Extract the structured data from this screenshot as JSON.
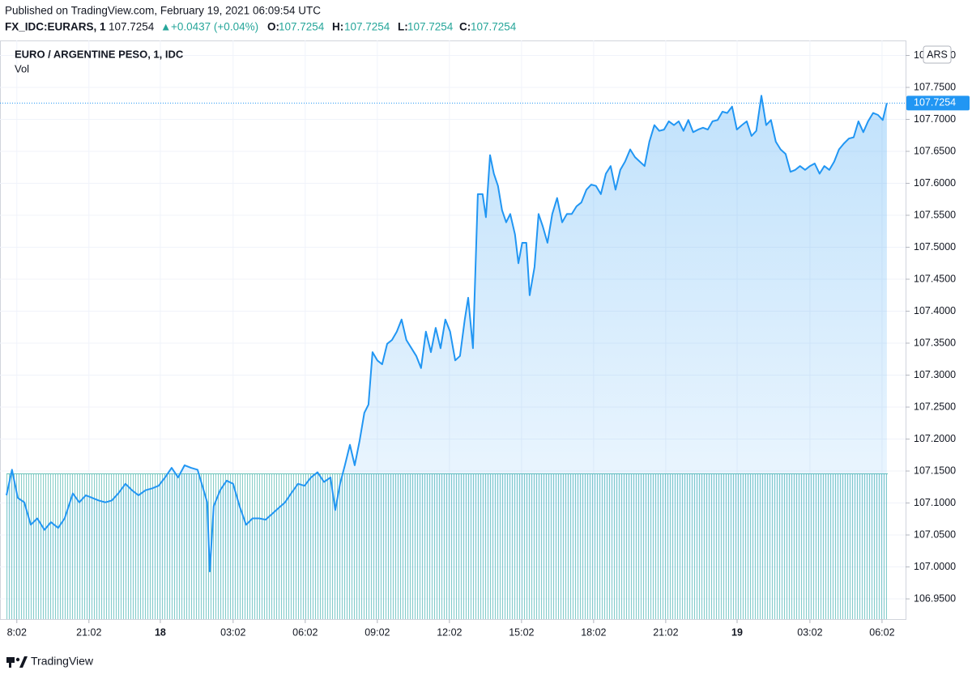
{
  "header": {
    "published": "Published on TradingView.com, February 19, 2021 06:09:54 UTC",
    "symbol": "FX_IDC:EURARS, 1",
    "last": "107.7254",
    "arrow": "▲",
    "change": "+0.0437 (+0.04%)",
    "o_label": "O:",
    "o": "107.7254",
    "h_label": "H:",
    "h": "107.7254",
    "l_label": "L:",
    "l": "107.7254",
    "c_label": "C:",
    "c": "107.7254"
  },
  "footer": {
    "brand": "TradingView"
  },
  "chart_data": {
    "type": "line",
    "volume_label": "Vol",
    "currency_button": "ARS",
    "price_label": "107.7254",
    "xlim": [
      -6.67,
      31.01
    ],
    "ylim": [
      106.9184,
      107.8234
    ],
    "grid": true,
    "xticks": [
      {
        "value": -5.97,
        "label": "8:02"
      },
      {
        "value": -2.97,
        "label": "21:02"
      },
      {
        "value": 0,
        "label": "18"
      },
      {
        "value": 3.03,
        "label": "03:02"
      },
      {
        "value": 6.03,
        "label": "06:02"
      },
      {
        "value": 9.03,
        "label": "09:02"
      },
      {
        "value": 12.03,
        "label": "12:02"
      },
      {
        "value": 15.03,
        "label": "15:02"
      },
      {
        "value": 18.03,
        "label": "18:02"
      },
      {
        "value": 21.03,
        "label": "21:02"
      },
      {
        "value": 24,
        "label": "19"
      },
      {
        "value": 27.03,
        "label": "03:02"
      },
      {
        "value": 30.03,
        "label": "06:02"
      }
    ],
    "yticks": [
      {
        "value": 106.95,
        "label": "106.9500"
      },
      {
        "value": 107,
        "label": "107.0000"
      },
      {
        "value": 107.05,
        "label": "107.0500"
      },
      {
        "value": 107.1,
        "label": "107.1000"
      },
      {
        "value": 107.15,
        "label": "107.1500"
      },
      {
        "value": 107.2,
        "label": "107.2000"
      },
      {
        "value": 107.25,
        "label": "107.2500"
      },
      {
        "value": 107.3,
        "label": "107.3000"
      },
      {
        "value": 107.35,
        "label": "107.3500"
      },
      {
        "value": 107.4,
        "label": "107.4000"
      },
      {
        "value": 107.45,
        "label": "107.4500"
      },
      {
        "value": 107.5,
        "label": "107.5000"
      },
      {
        "value": 107.55,
        "label": "107.5500"
      },
      {
        "value": 107.6,
        "label": "107.6000"
      },
      {
        "value": 107.65,
        "label": "107.6500"
      },
      {
        "value": 107.7,
        "label": "107.7000"
      },
      {
        "value": 107.75,
        "label": "107.7500"
      },
      {
        "value": 107.8,
        "label": "107.8000"
      }
    ],
    "x": [
      -6.4,
      -6.17,
      -5.93,
      -5.66,
      -5.39,
      -5.12,
      -4.82,
      -4.55,
      -4.25,
      -3.98,
      -3.64,
      -3.37,
      -3.1,
      -2.83,
      -2.56,
      -2.29,
      -2.02,
      -1.75,
      -1.45,
      -1.18,
      -0.91,
      -0.61,
      -0.34,
      -0.07,
      0.2,
      0.47,
      0.74,
      1.01,
      1.28,
      1.55,
      1.75,
      1.95,
      2.06,
      2.22,
      2.49,
      2.76,
      3.03,
      3.3,
      3.57,
      3.84,
      4.11,
      4.38,
      4.65,
      4.92,
      5.19,
      5.46,
      5.73,
      6.0,
      6.27,
      6.54,
      6.81,
      7.08,
      7.28,
      7.48,
      7.68,
      7.89,
      8.09,
      8.29,
      8.49,
      8.66,
      8.83,
      9.03,
      9.23,
      9.44,
      9.64,
      9.84,
      10.04,
      10.24,
      10.45,
      10.65,
      10.85,
      11.05,
      11.26,
      11.46,
      11.66,
      11.86,
      12.06,
      12.27,
      12.47,
      12.67,
      12.81,
      13.01,
      13.21,
      13.41,
      13.55,
      13.72,
      13.88,
      14.05,
      14.22,
      14.39,
      14.56,
      14.76,
      14.9,
      15.06,
      15.23,
      15.37,
      15.57,
      15.74,
      15.91,
      16.11,
      16.31,
      16.51,
      16.72,
      16.92,
      17.12,
      17.32,
      17.52,
      17.73,
      17.93,
      18.13,
      18.33,
      18.54,
      18.74,
      18.94,
      19.14,
      19.34,
      19.55,
      19.75,
      19.95,
      20.15,
      20.35,
      20.56,
      20.76,
      20.96,
      21.16,
      21.37,
      21.57,
      21.77,
      21.97,
      22.17,
      22.38,
      22.58,
      22.78,
      22.98,
      23.19,
      23.39,
      23.59,
      23.79,
      23.99,
      24.2,
      24.4,
      24.6,
      24.8,
      25.01,
      25.21,
      25.41,
      25.61,
      25.81,
      26.02,
      26.22,
      26.42,
      26.62,
      26.83,
      27.03,
      27.23,
      27.43,
      27.63,
      27.84,
      28.04,
      28.24,
      28.44,
      28.65,
      28.85,
      29.05,
      29.25,
      29.45,
      29.66,
      29.86,
      30.06,
      30.23
    ],
    "series": [
      {
        "name": "EURO / ARGENTINE PESO, 1, IDC",
        "color": "#2196f3",
        "values": [
          107.112,
          107.152,
          107.108,
          107.101,
          107.066,
          107.076,
          107.058,
          107.07,
          107.061,
          107.076,
          107.115,
          107.101,
          107.112,
          107.108,
          107.104,
          107.101,
          107.104,
          107.115,
          107.13,
          107.12,
          107.112,
          107.12,
          107.123,
          107.127,
          107.14,
          107.155,
          107.14,
          107.159,
          107.155,
          107.152,
          107.127,
          107.101,
          106.993,
          107.095,
          107.12,
          107.135,
          107.13,
          107.095,
          107.066,
          107.076,
          107.076,
          107.074,
          107.083,
          107.092,
          107.101,
          107.116,
          107.13,
          107.127,
          107.14,
          107.148,
          107.133,
          107.14,
          107.089,
          107.13,
          107.159,
          107.191,
          107.159,
          107.197,
          107.241,
          107.254,
          107.336,
          107.323,
          107.317,
          107.349,
          107.355,
          107.368,
          107.387,
          107.355,
          107.342,
          107.33,
          107.311,
          107.368,
          107.336,
          107.374,
          107.342,
          107.387,
          107.368,
          107.323,
          107.33,
          107.387,
          107.421,
          107.342,
          107.583,
          107.583,
          107.547,
          107.644,
          107.615,
          107.596,
          107.558,
          107.539,
          107.552,
          107.52,
          107.475,
          107.507,
          107.507,
          107.425,
          107.469,
          107.552,
          107.533,
          107.507,
          107.552,
          107.577,
          107.539,
          107.552,
          107.552,
          107.564,
          107.57,
          107.59,
          107.598,
          107.596,
          107.583,
          107.615,
          107.627,
          107.59,
          107.621,
          107.634,
          107.653,
          107.641,
          107.634,
          107.627,
          107.665,
          107.691,
          107.682,
          107.684,
          107.697,
          107.691,
          107.697,
          107.682,
          107.699,
          107.68,
          107.684,
          107.687,
          107.684,
          107.697,
          107.699,
          107.712,
          107.71,
          107.72,
          107.684,
          107.691,
          107.697,
          107.674,
          107.682,
          107.737,
          107.691,
          107.699,
          107.665,
          107.653,
          107.646,
          107.618,
          107.621,
          107.627,
          107.621,
          107.627,
          107.631,
          107.615,
          107.627,
          107.621,
          107.634,
          107.653,
          107.662,
          107.67,
          107.672,
          107.697,
          107.68,
          107.697,
          107.71,
          107.707,
          107.699,
          107.7254
        ]
      }
    ]
  }
}
